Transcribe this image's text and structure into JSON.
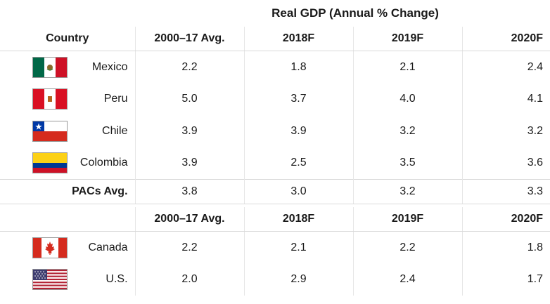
{
  "chart_data": {
    "type": "table",
    "title": "Real GDP (Annual % Change)",
    "columns": [
      "Country",
      "2000–17 Avg.",
      "2018F",
      "2019F",
      "2020F"
    ],
    "pac_rows": [
      {
        "country": "Mexico",
        "flag": "mexico-flag-icon",
        "values": [
          "2.2",
          "1.8",
          "2.1",
          "2.4"
        ]
      },
      {
        "country": "Peru",
        "flag": "peru-flag-icon",
        "values": [
          "5.0",
          "3.7",
          "4.0",
          "4.1"
        ]
      },
      {
        "country": "Chile",
        "flag": "chile-flag-icon",
        "values": [
          "3.9",
          "3.9",
          "3.2",
          "3.2"
        ]
      },
      {
        "country": "Colombia",
        "flag": "colombia-flag-icon",
        "values": [
          "3.9",
          "2.5",
          "3.5",
          "3.6"
        ]
      }
    ],
    "pac_avg": {
      "label": "PACs Avg.",
      "values": [
        "3.8",
        "3.0",
        "3.2",
        "3.3"
      ]
    },
    "second_header": [
      "2000–17 Avg.",
      "2018F",
      "2019F",
      "2020F"
    ],
    "other_rows": [
      {
        "country": "Canada",
        "flag": "canada-flag-icon",
        "values": [
          "2.2",
          "2.1",
          "2.2",
          "1.8"
        ]
      },
      {
        "country": "U.S.",
        "flag": "us-flag-icon",
        "values": [
          "2.0",
          "2.9",
          "2.4",
          "1.7"
        ]
      }
    ]
  }
}
